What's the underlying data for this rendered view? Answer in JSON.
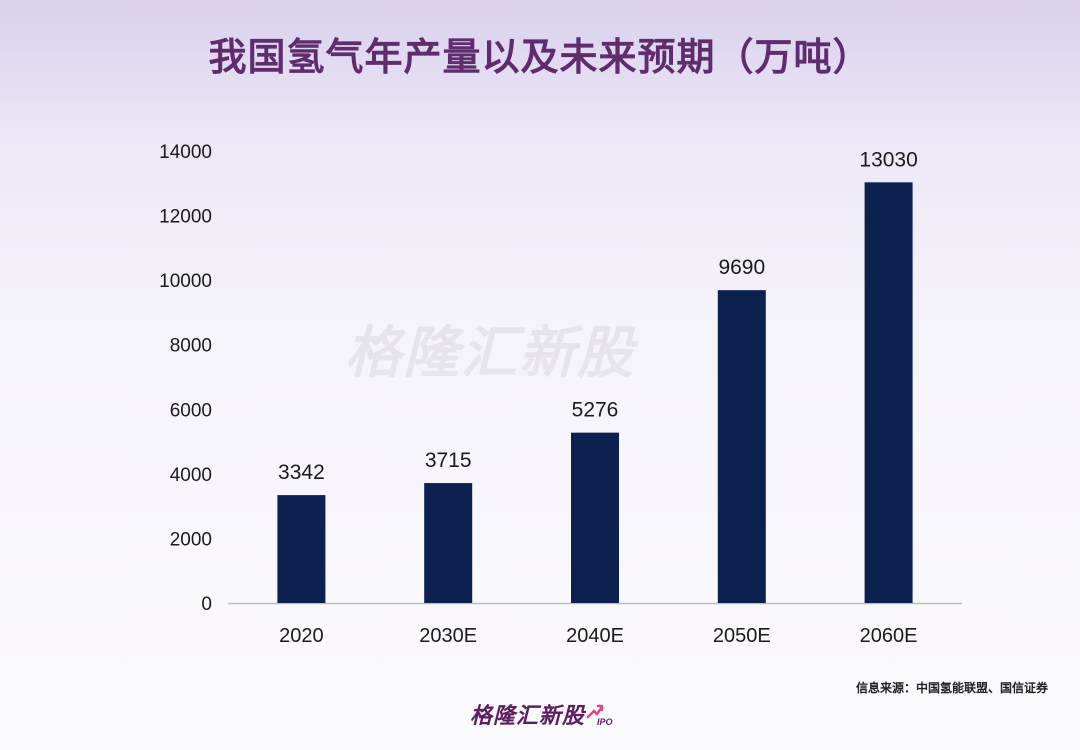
{
  "chart_data": {
    "type": "bar",
    "title": "我国氢气年产量以及未来预期（万吨）",
    "categories": [
      "2020",
      "2030E",
      "2040E",
      "2050E",
      "2060E"
    ],
    "values": [
      3342,
      3715,
      5276,
      9690,
      13030
    ],
    "data_labels": [
      "3342",
      "3715",
      "5276",
      "9690",
      "13030"
    ],
    "ylim": [
      0,
      14000
    ],
    "yticks": [
      0,
      2000,
      4000,
      6000,
      8000,
      10000,
      12000,
      14000
    ],
    "ytick_labels": [
      "0",
      "2000",
      "4000",
      "6000",
      "8000",
      "10000",
      "12000",
      "14000"
    ],
    "grid": false,
    "bar_color": "#0d2150"
  },
  "source": "信息来源：中国氢能联盟、国信证券",
  "watermark": "格隆汇新股",
  "logo": {
    "text": "格隆汇新股",
    "sub": "IPO",
    "color": "#5c1d62"
  }
}
